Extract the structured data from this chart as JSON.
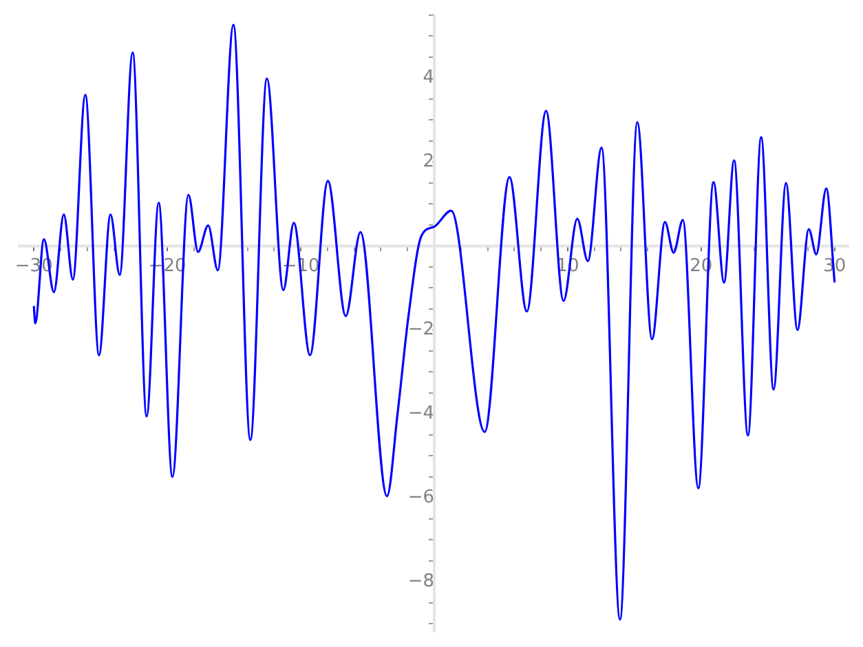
{
  "chart_data": {
    "type": "line",
    "color": "#0000ff",
    "x": [
      -30.0,
      -29.9,
      -29.25,
      -28.5,
      -27.76,
      -27.08,
      -26.15,
      -25.12,
      -24.26,
      -23.57,
      -22.6,
      -21.55,
      -20.65,
      -19.62,
      -18.42,
      -17.7,
      -16.94,
      -16.22,
      -15.05,
      -13.78,
      -12.54,
      -11.31,
      -10.52,
      -9.31,
      -7.97,
      -6.63,
      -5.53,
      -3.54,
      -2.75,
      -1.93,
      -0.96,
      0.0,
      1.27,
      3.78,
      5.64,
      6.94,
      8.38,
      9.69,
      10.72,
      11.51,
      12.54,
      13.92,
      15.22,
      16.32,
      17.29,
      17.94,
      18.63,
      19.79,
      20.93,
      21.72,
      22.47,
      23.51,
      24.5,
      25.43,
      26.36,
      27.22,
      28.07,
      28.63,
      29.38,
      30.0
    ],
    "values": [
      -1.45,
      -1.84,
      0.16,
      -1.1,
      0.75,
      -0.8,
      3.6,
      -2.6,
      0.75,
      -0.69,
      4.61,
      -4.06,
      1.03,
      -5.5,
      1.22,
      -0.14,
      0.49,
      -0.58,
      5.27,
      -4.62,
      3.99,
      -1.05,
      0.55,
      -2.6,
      1.55,
      -1.67,
      0.33,
      -5.96,
      -4.0,
      -1.67,
      0.24,
      0.46,
      0.84,
      -4.43,
      1.64,
      -1.56,
      3.22,
      -1.31,
      0.65,
      -0.36,
      2.34,
      -8.9,
      2.95,
      -2.22,
      0.57,
      -0.16,
      0.62,
      -5.77,
      1.52,
      -0.87,
      2.04,
      -4.51,
      2.59,
      -3.42,
      1.5,
      -2.0,
      0.4,
      -0.2,
      1.37,
      -0.85
    ],
    "xlim": [
      -31.2,
      31.1
    ],
    "ylim": [
      -9.2,
      5.5
    ],
    "xticks": [
      {
        "value": -30,
        "label": "−30"
      },
      {
        "value": -28,
        "label": null
      },
      {
        "value": -26,
        "label": null
      },
      {
        "value": -24,
        "label": null
      },
      {
        "value": -22,
        "label": null
      },
      {
        "value": -20,
        "label": "−20"
      },
      {
        "value": -18,
        "label": null
      },
      {
        "value": -16,
        "label": null
      },
      {
        "value": -14,
        "label": null
      },
      {
        "value": -12,
        "label": null
      },
      {
        "value": -10,
        "label": "−10"
      },
      {
        "value": -8,
        "label": null
      },
      {
        "value": -6,
        "label": null
      },
      {
        "value": -4,
        "label": null
      },
      {
        "value": -2,
        "label": null
      },
      {
        "value": 0,
        "label": null
      },
      {
        "value": 2,
        "label": null
      },
      {
        "value": 4,
        "label": null
      },
      {
        "value": 6,
        "label": null
      },
      {
        "value": 8,
        "label": null
      },
      10,
      {
        "value": 12,
        "label": null
      },
      {
        "value": 14,
        "label": null
      },
      {
        "value": 16,
        "label": null
      },
      {
        "value": 18,
        "label": null
      },
      20,
      {
        "value": 22,
        "label": null
      },
      {
        "value": 24,
        "label": null
      },
      {
        "value": 26,
        "label": null
      },
      {
        "value": 28,
        "label": null
      },
      30
    ],
    "yticks": [
      {
        "value": -9,
        "label": null
      },
      {
        "value": -8.5,
        "label": null
      },
      {
        "value": -8,
        "label": "−8"
      },
      {
        "value": -7.5,
        "label": null
      },
      {
        "value": -7,
        "label": null
      },
      {
        "value": -6.5,
        "label": null
      },
      {
        "value": -6,
        "label": "−6"
      },
      {
        "value": -5.5,
        "label": null
      },
      {
        "value": -5,
        "label": null
      },
      {
        "value": -4.5,
        "label": null
      },
      {
        "value": -4,
        "label": "−4"
      },
      {
        "value": -3.5,
        "label": null
      },
      {
        "value": -3,
        "label": null
      },
      {
        "value": -2.5,
        "label": null
      },
      {
        "value": -2,
        "label": "−2"
      },
      {
        "value": -1.5,
        "label": null
      },
      {
        "value": -1,
        "label": null
      },
      {
        "value": -0.5,
        "label": null
      },
      {
        "value": 0,
        "label": null
      },
      {
        "value": 0.5,
        "label": null
      },
      {
        "value": 1,
        "label": null
      },
      {
        "value": 1.5,
        "label": null
      },
      2,
      {
        "value": 2.5,
        "label": null
      },
      {
        "value": 3,
        "label": null
      },
      {
        "value": 3.5,
        "label": null
      },
      4,
      {
        "value": 4.5,
        "label": null
      },
      {
        "value": 5,
        "label": null
      },
      {
        "value": 5.5,
        "label": null
      }
    ]
  }
}
